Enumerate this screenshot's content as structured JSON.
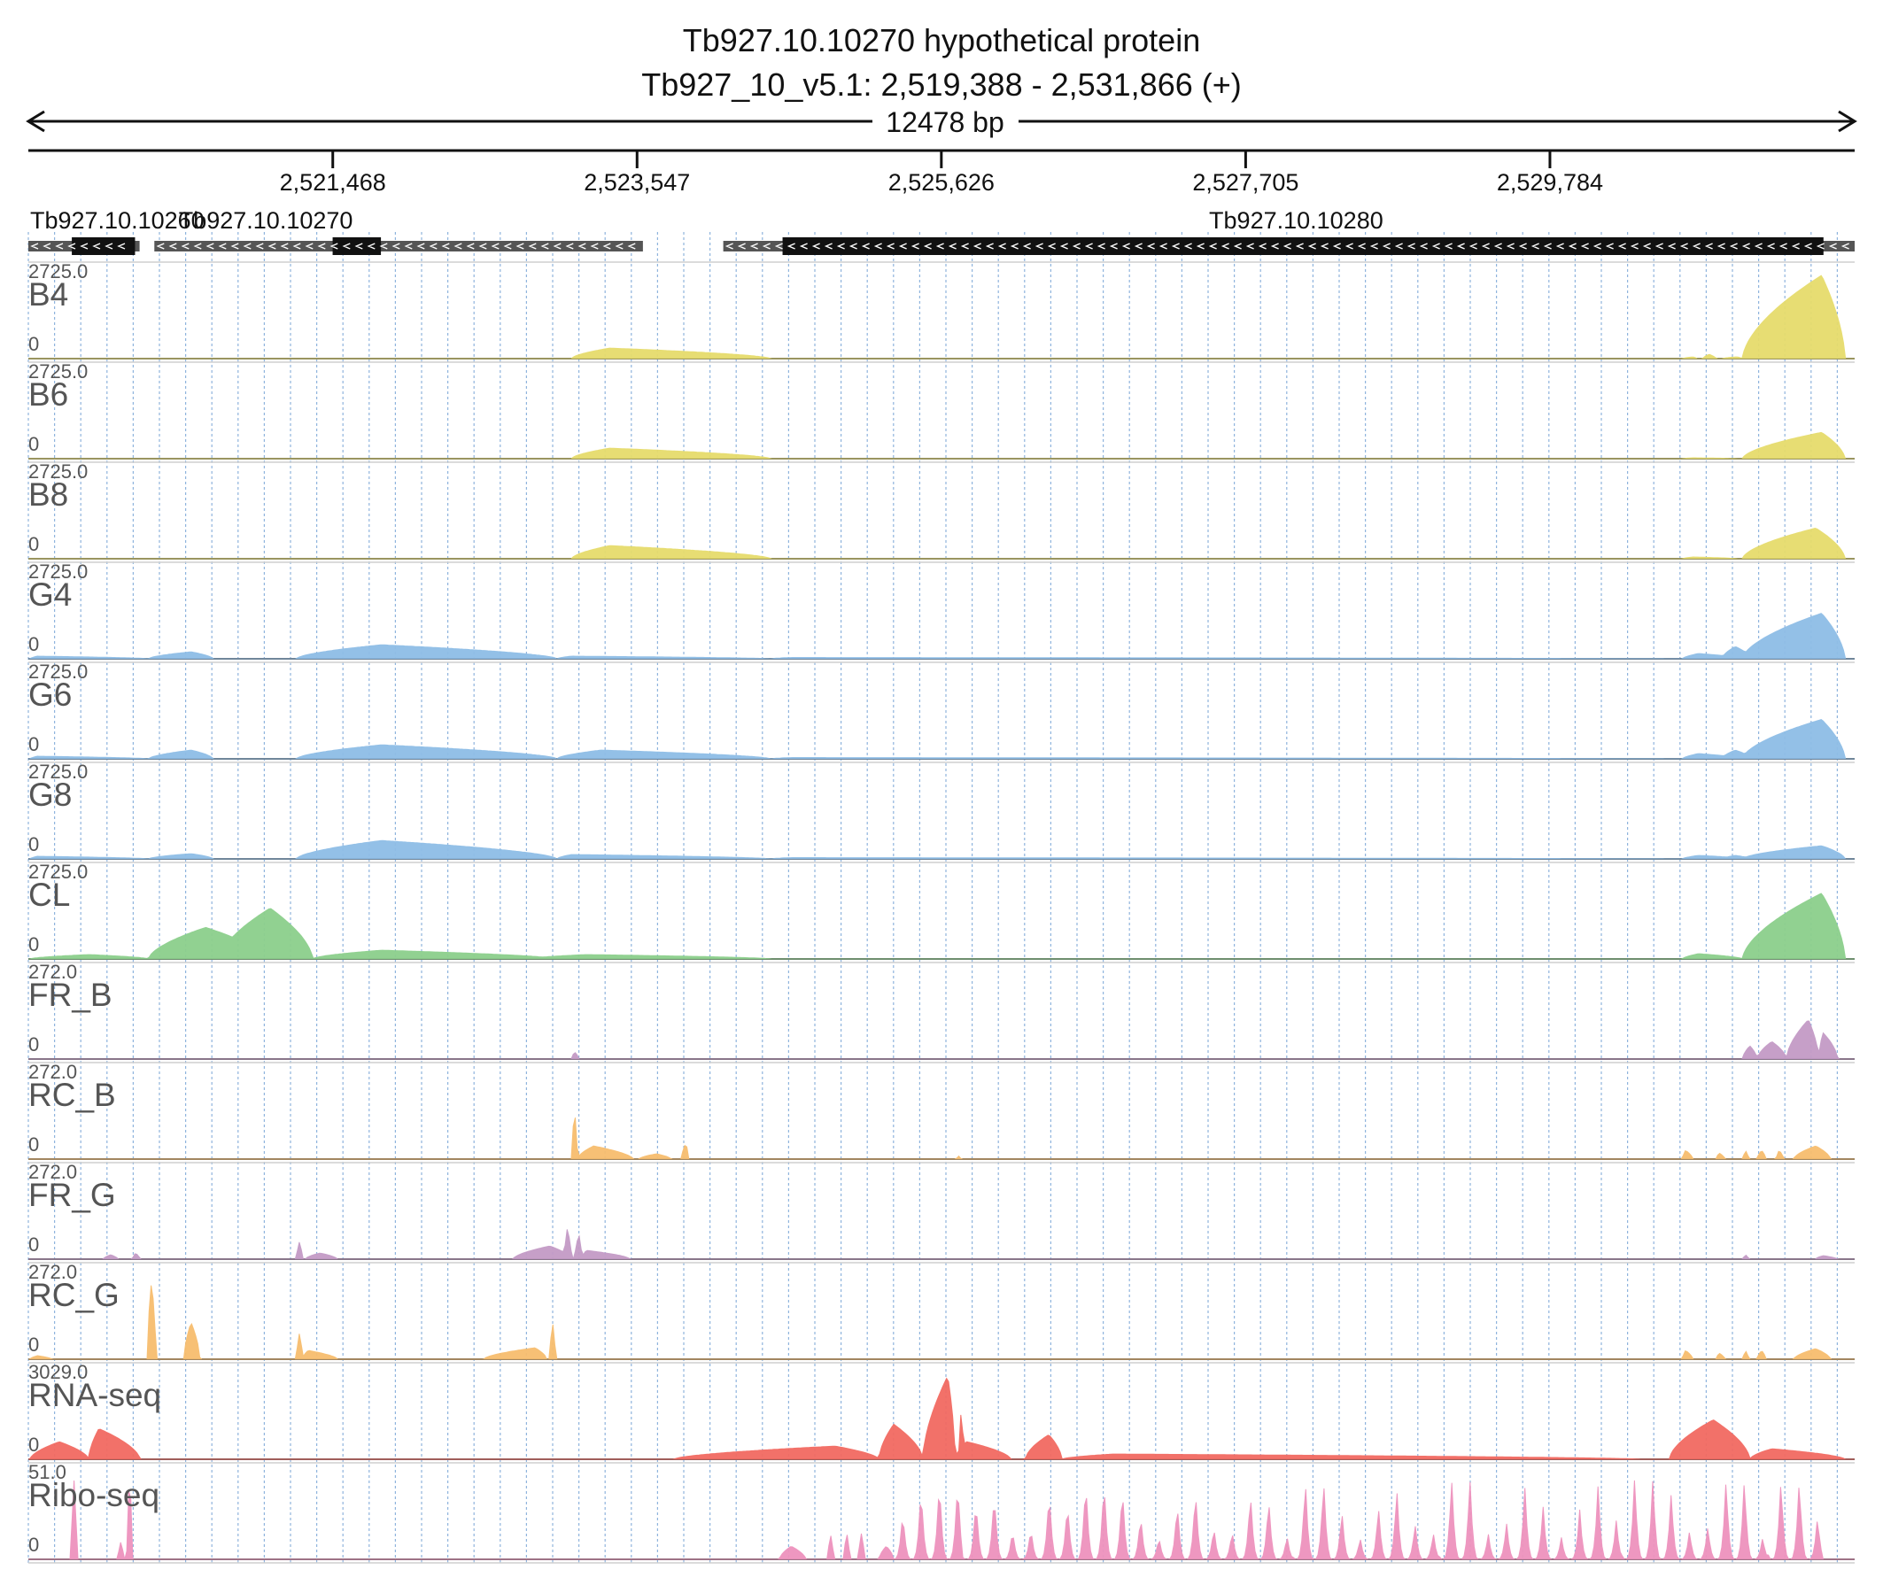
{
  "header": {
    "title": "Tb927.10.10270  hypothetical protein",
    "subtitle": "Tb927_10_v5.1: 2,519,388 - 2,531,866 (+)",
    "span_label": "12478 bp"
  },
  "chart_data": {
    "type": "area",
    "chromosome": "Tb927_10_v5.1",
    "region": {
      "start": 2519388,
      "end": 2531866,
      "strand": "+"
    },
    "x_ticks": [
      {
        "value": 2521468,
        "label": "2,521,468"
      },
      {
        "value": 2523547,
        "label": "2,523,547"
      },
      {
        "value": 2525626,
        "label": "2,525,626"
      },
      {
        "value": 2527705,
        "label": "2,527,705"
      },
      {
        "value": 2529784,
        "label": "2,529,784"
      }
    ],
    "grid": true,
    "genes": [
      {
        "name": "Tb927.10.10260",
        "strand": "-",
        "start": 2519388,
        "end": 2520148,
        "cds": [
          2519685,
          2520117
        ]
      },
      {
        "name": "Tb927.10.10270",
        "strand": "-",
        "start": 2520249,
        "end": 2523587,
        "cds": [
          2521467,
          2521797
        ]
      },
      {
        "name": "Tb927.10.10280",
        "strand": "-",
        "start": 2524136,
        "end": 2531866,
        "cds": [
          2524541,
          2531653
        ]
      }
    ],
    "series": [
      {
        "name": "B4",
        "max_label": "2725.0",
        "min_label": "0",
        "max": 2725.0,
        "color": "#e6dc6c",
        "peaks": [
          [
            2523100,
            2523360,
            2524460,
            0.12
          ],
          [
            2530690,
            2530760,
            2530790,
            0.02
          ],
          [
            2530830,
            2530870,
            2530920,
            0.05
          ],
          [
            2530960,
            2531060,
            2531100,
            0.02
          ],
          [
            2531100,
            2531640,
            2531800,
            0.95
          ]
        ]
      },
      {
        "name": "B6",
        "max_label": "2725.0",
        "min_label": "0",
        "max": 2725.0,
        "color": "#e6dc6c",
        "peaks": [
          [
            2523100,
            2523360,
            2524460,
            0.12
          ],
          [
            2530690,
            2530760,
            2531060,
            0.01
          ],
          [
            2531100,
            2531640,
            2531800,
            0.3
          ]
        ]
      },
      {
        "name": "B8",
        "max_label": "2725.0",
        "min_label": "0",
        "max": 2725.0,
        "color": "#e6dc6c",
        "peaks": [
          [
            2523100,
            2523360,
            2524460,
            0.15
          ],
          [
            2530690,
            2530760,
            2531060,
            0.02
          ],
          [
            2531100,
            2531600,
            2531800,
            0.35
          ]
        ]
      },
      {
        "name": "G4",
        "max_label": "2725.0",
        "min_label": "0",
        "max": 2725.0,
        "color": "#8ebde6",
        "peaks": [
          [
            2519400,
            2519450,
            2520210,
            0.03
          ],
          [
            2520210,
            2520500,
            2520650,
            0.08
          ],
          [
            2521220,
            2521800,
            2523000,
            0.16
          ],
          [
            2523000,
            2523100,
            2524460,
            0.03
          ],
          [
            2524460,
            2524600,
            2530690,
            0.015
          ],
          [
            2530690,
            2530800,
            2531100,
            0.06
          ],
          [
            2530960,
            2531050,
            2531160,
            0.14
          ],
          [
            2531100,
            2531640,
            2531800,
            0.52
          ]
        ]
      },
      {
        "name": "G6",
        "max_label": "2725.0",
        "min_label": "0",
        "max": 2725.0,
        "color": "#8ebde6",
        "peaks": [
          [
            2519400,
            2519450,
            2520210,
            0.03
          ],
          [
            2520210,
            2520500,
            2520650,
            0.1
          ],
          [
            2521220,
            2521800,
            2523000,
            0.16
          ],
          [
            2523000,
            2523300,
            2524460,
            0.1
          ],
          [
            2524460,
            2524600,
            2530690,
            0.015
          ],
          [
            2530690,
            2530800,
            2531100,
            0.06
          ],
          [
            2530960,
            2531050,
            2531160,
            0.1
          ],
          [
            2531100,
            2531640,
            2531800,
            0.45
          ]
        ]
      },
      {
        "name": "G8",
        "max_label": "2725.0",
        "min_label": "0",
        "max": 2725.0,
        "color": "#8ebde6",
        "peaks": [
          [
            2519400,
            2519450,
            2520210,
            0.03
          ],
          [
            2520210,
            2520500,
            2520650,
            0.06
          ],
          [
            2521220,
            2521800,
            2523000,
            0.21
          ],
          [
            2523000,
            2523100,
            2524460,
            0.05
          ],
          [
            2524460,
            2524600,
            2530690,
            0.015
          ],
          [
            2530690,
            2530800,
            2531100,
            0.04
          ],
          [
            2530960,
            2531050,
            2531160,
            0.04
          ],
          [
            2531100,
            2531640,
            2531800,
            0.15
          ]
        ]
      },
      {
        "name": "CL",
        "max_label": "2725.0",
        "min_label": "0",
        "max": 2725.0,
        "color": "#8ccf8c",
        "peaks": [
          [
            2519400,
            2519800,
            2520210,
            0.05
          ],
          [
            2520210,
            2520600,
            2521000,
            0.36
          ],
          [
            2520700,
            2521040,
            2521330,
            0.58
          ],
          [
            2521330,
            2521800,
            2523000,
            0.1
          ],
          [
            2522800,
            2523200,
            2524460,
            0.05
          ],
          [
            2530690,
            2530800,
            2531100,
            0.06
          ],
          [
            2531100,
            2531640,
            2531800,
            0.75
          ]
        ]
      },
      {
        "name": "FR_B",
        "max_label": "272.0",
        "min_label": "0",
        "max": 272.0,
        "color": "#c39ac6",
        "peaks": [
          [
            2523100,
            2523120,
            2523150,
            0.08
          ],
          [
            2531100,
            2531150,
            2531200,
            0.15
          ],
          [
            2531200,
            2531300,
            2531400,
            0.2
          ],
          [
            2531400,
            2531550,
            2531620,
            0.45
          ],
          [
            2531620,
            2531650,
            2531750,
            0.3
          ]
        ]
      },
      {
        "name": "RC_B",
        "max_label": "272.0",
        "min_label": "0",
        "max": 272.0,
        "color": "#f7bd6e",
        "peaks": [
          [
            2523100,
            2523120,
            2523140,
            0.55
          ],
          [
            2523140,
            2523250,
            2523520,
            0.15
          ],
          [
            2523560,
            2523680,
            2523780,
            0.06
          ],
          [
            2523850,
            2523880,
            2523900,
            0.18
          ],
          [
            2525730,
            2525740,
            2525760,
            0.04
          ],
          [
            2530690,
            2530710,
            2530760,
            0.1
          ],
          [
            2530920,
            2530940,
            2530980,
            0.07
          ],
          [
            2531100,
            2531130,
            2531140,
            0.1
          ],
          [
            2531200,
            2531230,
            2531260,
            0.1
          ],
          [
            2531330,
            2531350,
            2531380,
            0.1
          ],
          [
            2531450,
            2531600,
            2531700,
            0.15
          ]
        ]
      },
      {
        "name": "FR_G",
        "max_label": "272.0",
        "min_label": "0",
        "max": 272.0,
        "color": "#c39ac6",
        "peaks": [
          [
            2519900,
            2519950,
            2520000,
            0.05
          ],
          [
            2520100,
            2520120,
            2520150,
            0.07
          ],
          [
            2521220,
            2521240,
            2521260,
            0.2
          ],
          [
            2521280,
            2521380,
            2521500,
            0.07
          ],
          [
            2522700,
            2522950,
            2523100,
            0.15
          ],
          [
            2523050,
            2523070,
            2523100,
            0.35
          ],
          [
            2523120,
            2523150,
            2523170,
            0.28
          ],
          [
            2523170,
            2523200,
            2523500,
            0.1
          ],
          [
            2531100,
            2531130,
            2531140,
            0.05
          ],
          [
            2531600,
            2531650,
            2531750,
            0.04
          ]
        ]
      },
      {
        "name": "RC_G",
        "max_label": "272.0",
        "min_label": "0",
        "max": 272.0,
        "color": "#f7bd6e",
        "peaks": [
          [
            2519400,
            2519450,
            2519550,
            0.04
          ],
          [
            2520200,
            2520230,
            2520260,
            0.9
          ],
          [
            2520450,
            2520500,
            2520560,
            0.42
          ],
          [
            2521220,
            2521240,
            2521260,
            0.3
          ],
          [
            2521260,
            2521300,
            2521500,
            0.1
          ],
          [
            2522500,
            2522850,
            2522930,
            0.13
          ],
          [
            2522950,
            2522970,
            2522990,
            0.42
          ],
          [
            2530690,
            2530710,
            2530760,
            0.1
          ],
          [
            2530920,
            2530940,
            2530980,
            0.07
          ],
          [
            2531100,
            2531130,
            2531140,
            0.1
          ],
          [
            2531200,
            2531230,
            2531260,
            0.1
          ],
          [
            2531450,
            2531600,
            2531700,
            0.12
          ]
        ]
      },
      {
        "name": "RNA-seq",
        "max_label": "3029.0",
        "min_label": "0",
        "max": 3029.0,
        "color": "#f26a61",
        "peaks": [
          [
            2519400,
            2519600,
            2519800,
            0.2
          ],
          [
            2519800,
            2519870,
            2520150,
            0.35
          ],
          [
            2523800,
            2524900,
            2525200,
            0.15
          ],
          [
            2525200,
            2525300,
            2525500,
            0.4
          ],
          [
            2525500,
            2525670,
            2525720,
            0.95
          ],
          [
            2525720,
            2525800,
            2526100,
            0.2
          ],
          [
            2525750,
            2525760,
            2525780,
            0.55
          ],
          [
            2526200,
            2526360,
            2526450,
            0.28
          ],
          [
            2526450,
            2526800,
            2530400,
            0.06
          ],
          [
            2530600,
            2530900,
            2531150,
            0.45
          ],
          [
            2531150,
            2531300,
            2531800,
            0.12
          ]
        ]
      },
      {
        "name": "Ribo-seq",
        "max_label": "51.0",
        "min_label": "0",
        "max": 51.0,
        "color": "#ee92bd",
        "peaks": [
          [
            2519680,
            2519700,
            2519720,
            0.9
          ],
          [
            2520060,
            2520080,
            2520100,
            0.95
          ],
          [
            2520000,
            2520020,
            2520040,
            0.2
          ],
          [
            2524520,
            2524600,
            2524700,
            0.15
          ],
          [
            2524850,
            2524870,
            2524890,
            0.28
          ],
          [
            2524960,
            2524980,
            2525000,
            0.3
          ],
          [
            2525060,
            2525080,
            2525100,
            0.3
          ],
          [
            2525200,
            2525250,
            2525300,
            0.15
          ]
        ],
        "periodic": {
          "start": 2525300,
          "end": 2531650,
          "period": 125,
          "low": 0.25,
          "high": 0.85,
          "hot": [
            2525640,
            2526700,
            2528150,
            2529150,
            2530400,
            2531050,
            2531400
          ]
        }
      }
    ]
  }
}
